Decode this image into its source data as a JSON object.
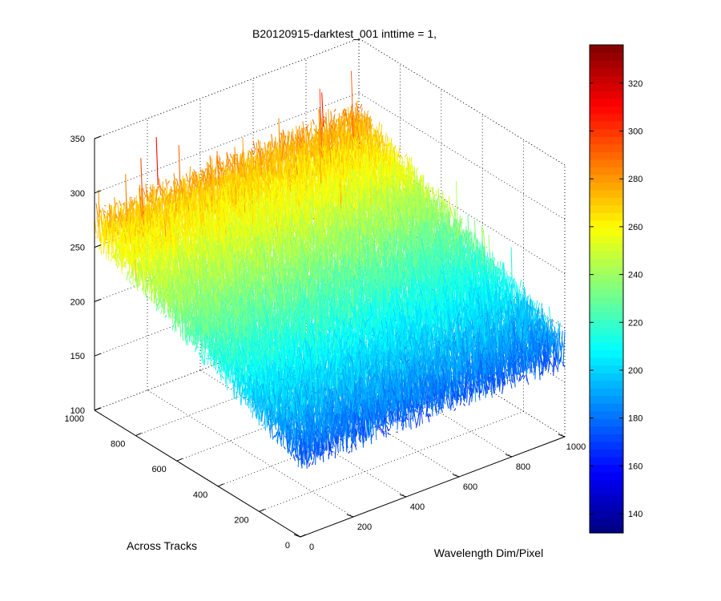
{
  "chart_data": {
    "type": "surface3d",
    "title": "B20120915-darktest_001 inttime = 1,",
    "xlabel": "Wavelength Dim/Pixel",
    "ylabel": "Across Tracks",
    "zlabel": "",
    "xlim": [
      0,
      1000
    ],
    "ylim": [
      0,
      1000
    ],
    "zlim": [
      100,
      350
    ],
    "x_ticks": [
      0,
      200,
      400,
      600,
      800,
      1000
    ],
    "y_ticks": [
      0,
      200,
      400,
      600,
      800,
      1000
    ],
    "z_ticks": [
      100,
      150,
      200,
      250,
      300,
      350
    ],
    "grid": true,
    "colormap": "jet",
    "colorbar": {
      "placement": "right",
      "clim": [
        132,
        336
      ],
      "ticks": [
        140,
        160,
        180,
        200,
        220,
        240,
        260,
        280,
        300,
        320
      ]
    },
    "surface_trend": {
      "description_values": "mean level at grid corners (x, y) -> z",
      "corners": [
        {
          "x": 0,
          "y": 0,
          "z": 180
        },
        {
          "x": 1000,
          "y": 0,
          "z": 180
        },
        {
          "x": 0,
          "y": 1000,
          "z": 270
        },
        {
          "x": 1000,
          "y": 1000,
          "z": 275
        }
      ],
      "noise_amplitude": 20,
      "spike_max": 335
    }
  }
}
